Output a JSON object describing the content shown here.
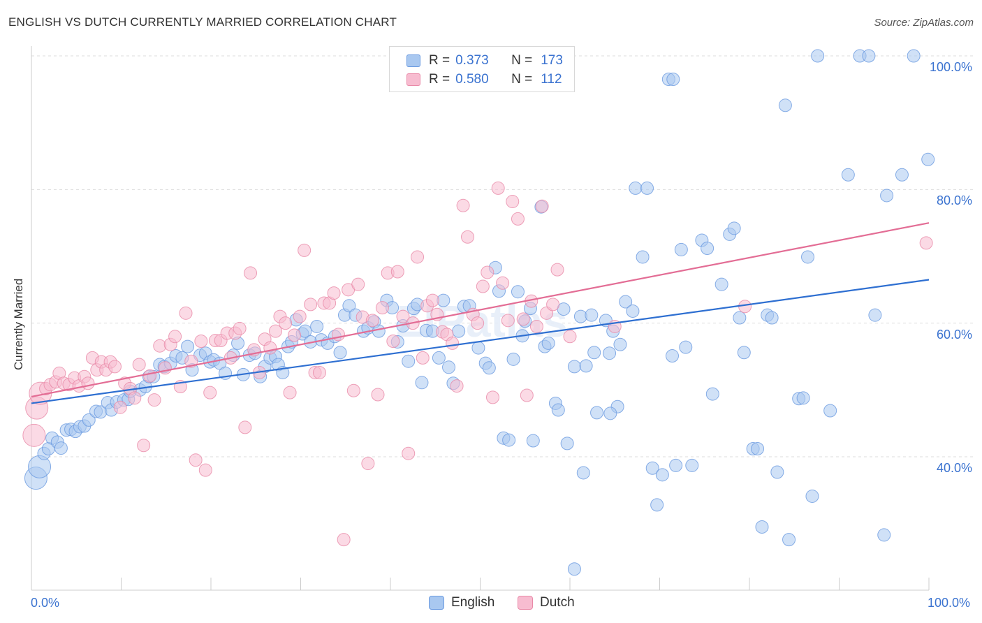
{
  "title": "ENGLISH VS DUTCH CURRENTLY MARRIED CORRELATION CHART",
  "source": "Source: ZipAtlas.com",
  "watermark": "ZIPatlas",
  "legend": {
    "english": {
      "r_label": "R =",
      "r_value": "0.373",
      "n_label": "N =",
      "n_value": "173"
    },
    "dutch": {
      "r_label": "R =",
      "r_value": "0.580",
      "n_label": "N =",
      "n_value": "112"
    }
  },
  "bottom_legend": {
    "english": "English",
    "dutch": "Dutch"
  },
  "colors": {
    "english_fill": "#a9c8f0",
    "english_stroke": "#6a9ae0",
    "english_line": "#2e6fd1",
    "dutch_fill": "#f7bcd0",
    "dutch_stroke": "#e98aa8",
    "dutch_line": "#e36d95",
    "axis_text": "#3b73d0",
    "grid": "#dddddd"
  },
  "chart_data": {
    "type": "scatter",
    "title": "ENGLISH VS DUTCH CURRENTLY MARRIED CORRELATION CHART",
    "xlabel": "",
    "ylabel": "Currently Married",
    "xlim": [
      0,
      100
    ],
    "ylim": [
      20,
      102
    ],
    "x_tick_labels": [
      "0.0%",
      "100.0%"
    ],
    "y_ticks": [
      40,
      60,
      80,
      100
    ],
    "y_tick_labels": [
      "40.0%",
      "60.0%",
      "80.0%",
      "100.0%"
    ],
    "grid": true,
    "series": [
      {
        "name": "English",
        "R": 0.373,
        "N": 173,
        "trendline": {
          "x": [
            0,
            100
          ],
          "y": [
            48.0,
            66.5
          ]
        },
        "points": [
          [
            0.5,
            36.8
          ],
          [
            0.9,
            38.5
          ],
          [
            1.4,
            40.5
          ],
          [
            1.9,
            41.2
          ],
          [
            2.3,
            42.8
          ],
          [
            2.9,
            42.2
          ],
          [
            3.3,
            41.3
          ],
          [
            3.9,
            44.0
          ],
          [
            4.4,
            44.1
          ],
          [
            4.9,
            43.8
          ],
          [
            5.4,
            44.5
          ],
          [
            5.9,
            44.6
          ],
          [
            6.4,
            45.5
          ],
          [
            7.2,
            46.8
          ],
          [
            7.7,
            46.7
          ],
          [
            8.5,
            48.1
          ],
          [
            8.9,
            47.0
          ],
          [
            9.5,
            48.2
          ],
          [
            10.3,
            48.5
          ],
          [
            10.8,
            48.6
          ],
          [
            11.0,
            49.8
          ],
          [
            12.1,
            50.0
          ],
          [
            12.7,
            50.5
          ],
          [
            13.1,
            52.0
          ],
          [
            13.6,
            52.0
          ],
          [
            14.3,
            53.8
          ],
          [
            14.8,
            53.5
          ],
          [
            15.5,
            54.0
          ],
          [
            16.1,
            55.1
          ],
          [
            16.8,
            54.8
          ],
          [
            17.4,
            56.5
          ],
          [
            17.9,
            53.0
          ],
          [
            18.8,
            55.2
          ],
          [
            19.4,
            55.5
          ],
          [
            19.9,
            54.2
          ],
          [
            20.3,
            54.5
          ],
          [
            21.0,
            54.0
          ],
          [
            21.6,
            52.5
          ],
          [
            22.5,
            55.2
          ],
          [
            23.0,
            57.0
          ],
          [
            23.6,
            52.3
          ],
          [
            24.3,
            55.2
          ],
          [
            24.9,
            55.5
          ],
          [
            25.5,
            52.0
          ],
          [
            26.0,
            53.5
          ],
          [
            26.6,
            54.8
          ],
          [
            27.2,
            55.0
          ],
          [
            27.5,
            53.8
          ],
          [
            28.0,
            52.6
          ],
          [
            28.6,
            56.5
          ],
          [
            29.0,
            57.2
          ],
          [
            29.5,
            60.5
          ],
          [
            30.2,
            58.4
          ],
          [
            30.5,
            58.8
          ],
          [
            31.1,
            57.2
          ],
          [
            31.8,
            59.5
          ],
          [
            32.3,
            57.5
          ],
          [
            33.0,
            57.0
          ],
          [
            33.8,
            58.0
          ],
          [
            34.4,
            55.6
          ],
          [
            34.9,
            61.2
          ],
          [
            35.4,
            62.6
          ],
          [
            36.1,
            61.2
          ],
          [
            37.0,
            58.8
          ],
          [
            37.5,
            59.3
          ],
          [
            38.2,
            60.2
          ],
          [
            38.7,
            58.8
          ],
          [
            39.6,
            63.4
          ],
          [
            40.2,
            62.3
          ],
          [
            40.8,
            57.2
          ],
          [
            41.4,
            59.6
          ],
          [
            42.0,
            54.3
          ],
          [
            42.6,
            62.2
          ],
          [
            43.0,
            62.8
          ],
          [
            43.5,
            51.1
          ],
          [
            44.0,
            58.9
          ],
          [
            44.7,
            58.8
          ],
          [
            45.4,
            54.8
          ],
          [
            45.9,
            63.4
          ],
          [
            46.5,
            53.4
          ],
          [
            47.0,
            51.0
          ],
          [
            47.6,
            58.8
          ],
          [
            48.2,
            62.5
          ],
          [
            48.8,
            62.6
          ],
          [
            49.8,
            56.3
          ],
          [
            50.6,
            54.0
          ],
          [
            51.0,
            53.3
          ],
          [
            51.7,
            68.3
          ],
          [
            52.1,
            64.8
          ],
          [
            52.6,
            42.8
          ],
          [
            53.2,
            42.5
          ],
          [
            53.7,
            54.6
          ],
          [
            54.2,
            64.7
          ],
          [
            54.7,
            58.1
          ],
          [
            55.0,
            60.3
          ],
          [
            55.6,
            62.2
          ],
          [
            55.9,
            42.4
          ],
          [
            56.8,
            77.4
          ],
          [
            57.2,
            56.5
          ],
          [
            57.6,
            57.0
          ],
          [
            58.4,
            48.0
          ],
          [
            58.7,
            47.0
          ],
          [
            59.3,
            62.1
          ],
          [
            59.7,
            42.0
          ],
          [
            60.5,
            53.5
          ],
          [
            61.2,
            61.0
          ],
          [
            61.5,
            37.6
          ],
          [
            61.8,
            53.6
          ],
          [
            62.4,
            61.2
          ],
          [
            62.7,
            55.6
          ],
          [
            63.0,
            46.6
          ],
          [
            64.0,
            60.4
          ],
          [
            64.4,
            55.5
          ],
          [
            64.8,
            58.8
          ],
          [
            65.3,
            47.5
          ],
          [
            65.6,
            56.8
          ],
          [
            66.2,
            63.2
          ],
          [
            67.0,
            61.8
          ],
          [
            67.3,
            80.2
          ],
          [
            68.1,
            69.9
          ],
          [
            68.6,
            80.2
          ],
          [
            69.2,
            38.3
          ],
          [
            69.7,
            32.8
          ],
          [
            70.3,
            37.3
          ],
          [
            71.0,
            96.5
          ],
          [
            71.4,
            55.1
          ],
          [
            71.8,
            38.7
          ],
          [
            72.4,
            71.0
          ],
          [
            72.9,
            56.4
          ],
          [
            73.6,
            38.7
          ],
          [
            74.7,
            72.4
          ],
          [
            75.3,
            71.2
          ],
          [
            75.9,
            49.4
          ],
          [
            76.9,
            65.8
          ],
          [
            77.8,
            73.3
          ],
          [
            78.3,
            74.2
          ],
          [
            78.9,
            60.8
          ],
          [
            79.4,
            55.6
          ],
          [
            80.4,
            41.2
          ],
          [
            80.9,
            41.2
          ],
          [
            81.4,
            29.5
          ],
          [
            82.0,
            61.2
          ],
          [
            82.5,
            60.8
          ],
          [
            83.1,
            37.7
          ],
          [
            84.0,
            92.6
          ],
          [
            84.4,
            27.6
          ],
          [
            85.5,
            48.7
          ],
          [
            86.0,
            48.8
          ],
          [
            86.5,
            69.9
          ],
          [
            87.0,
            34.1
          ],
          [
            87.6,
            100.0
          ],
          [
            89.0,
            46.9
          ],
          [
            91.0,
            82.2
          ],
          [
            92.3,
            100.0
          ],
          [
            93.3,
            100.0
          ],
          [
            94.0,
            61.2
          ],
          [
            95.0,
            28.3
          ],
          [
            95.3,
            79.1
          ],
          [
            97.0,
            82.2
          ],
          [
            98.3,
            100.0
          ],
          [
            99.9,
            84.5
          ],
          [
            71.5,
            96.5
          ],
          [
            60.5,
            23.2
          ],
          [
            64.5,
            46.5
          ]
        ]
      },
      {
        "name": "Dutch",
        "R": 0.58,
        "N": 112,
        "trendline": {
          "x": [
            0,
            100
          ],
          "y": [
            49.0,
            75.0
          ]
        },
        "points": [
          [
            0.3,
            43.2
          ],
          [
            0.6,
            47.3
          ],
          [
            1.0,
            49.5
          ],
          [
            1.6,
            50.2
          ],
          [
            2.1,
            50.8
          ],
          [
            2.7,
            51.2
          ],
          [
            3.1,
            52.5
          ],
          [
            3.6,
            51.0
          ],
          [
            4.2,
            50.8
          ],
          [
            4.8,
            51.8
          ],
          [
            5.3,
            50.6
          ],
          [
            5.9,
            52.0
          ],
          [
            6.3,
            51.0
          ],
          [
            6.8,
            54.8
          ],
          [
            7.3,
            53.0
          ],
          [
            7.8,
            54.2
          ],
          [
            8.3,
            53.0
          ],
          [
            8.8,
            54.2
          ],
          [
            9.3,
            53.5
          ],
          [
            9.9,
            47.4
          ],
          [
            10.4,
            51.0
          ],
          [
            11.0,
            50.2
          ],
          [
            11.5,
            48.8
          ],
          [
            12.0,
            53.8
          ],
          [
            12.5,
            41.7
          ],
          [
            13.2,
            52.1
          ],
          [
            13.7,
            48.5
          ],
          [
            14.3,
            56.6
          ],
          [
            14.9,
            53.3
          ],
          [
            15.5,
            56.8
          ],
          [
            16.0,
            58.0
          ],
          [
            16.6,
            50.5
          ],
          [
            17.2,
            61.5
          ],
          [
            17.8,
            54.3
          ],
          [
            18.3,
            39.5
          ],
          [
            18.9,
            57.3
          ],
          [
            19.4,
            38.0
          ],
          [
            19.9,
            49.6
          ],
          [
            20.5,
            57.4
          ],
          [
            21.1,
            57.4
          ],
          [
            21.8,
            58.5
          ],
          [
            22.2,
            54.8
          ],
          [
            22.7,
            58.5
          ],
          [
            23.2,
            59.2
          ],
          [
            23.8,
            44.4
          ],
          [
            24.4,
            67.5
          ],
          [
            24.8,
            56.0
          ],
          [
            25.4,
            52.6
          ],
          [
            26.0,
            57.6
          ],
          [
            26.6,
            56.3
          ],
          [
            27.2,
            58.8
          ],
          [
            27.7,
            61.0
          ],
          [
            28.3,
            60.0
          ],
          [
            28.8,
            49.6
          ],
          [
            29.3,
            58.2
          ],
          [
            29.9,
            61.0
          ],
          [
            30.4,
            70.9
          ],
          [
            31.1,
            62.8
          ],
          [
            31.6,
            52.6
          ],
          [
            32.1,
            52.6
          ],
          [
            32.6,
            63.0
          ],
          [
            33.2,
            63.0
          ],
          [
            33.7,
            64.5
          ],
          [
            34.2,
            58.3
          ],
          [
            34.8,
            27.6
          ],
          [
            35.3,
            65.0
          ],
          [
            35.9,
            49.9
          ],
          [
            36.4,
            65.8
          ],
          [
            36.9,
            60.9
          ],
          [
            37.5,
            39.0
          ],
          [
            38.0,
            60.4
          ],
          [
            38.6,
            49.3
          ],
          [
            39.1,
            62.3
          ],
          [
            39.7,
            67.5
          ],
          [
            40.3,
            57.3
          ],
          [
            40.8,
            67.7
          ],
          [
            41.4,
            61.0
          ],
          [
            42.0,
            40.5
          ],
          [
            42.5,
            60.0
          ],
          [
            43.0,
            69.9
          ],
          [
            43.6,
            54.8
          ],
          [
            44.1,
            62.6
          ],
          [
            44.7,
            63.4
          ],
          [
            45.2,
            61.3
          ],
          [
            45.8,
            58.7
          ],
          [
            46.3,
            58.3
          ],
          [
            46.9,
            57.0
          ],
          [
            47.4,
            50.6
          ],
          [
            48.1,
            77.6
          ],
          [
            48.6,
            72.9
          ],
          [
            49.2,
            61.3
          ],
          [
            49.7,
            60.0
          ],
          [
            50.3,
            65.5
          ],
          [
            50.8,
            67.6
          ],
          [
            51.4,
            48.9
          ],
          [
            52.0,
            80.2
          ],
          [
            52.5,
            66.0
          ],
          [
            53.1,
            60.4
          ],
          [
            53.6,
            78.2
          ],
          [
            54.2,
            75.6
          ],
          [
            54.8,
            60.6
          ],
          [
            55.2,
            49.2
          ],
          [
            55.7,
            63.3
          ],
          [
            56.3,
            59.5
          ],
          [
            56.9,
            77.5
          ],
          [
            57.4,
            61.5
          ],
          [
            58.1,
            62.8
          ],
          [
            58.6,
            68.0
          ],
          [
            60.0,
            58.0
          ],
          [
            65.0,
            59.5
          ],
          [
            79.5,
            62.5
          ],
          [
            99.7,
            72.0
          ]
        ]
      }
    ]
  }
}
